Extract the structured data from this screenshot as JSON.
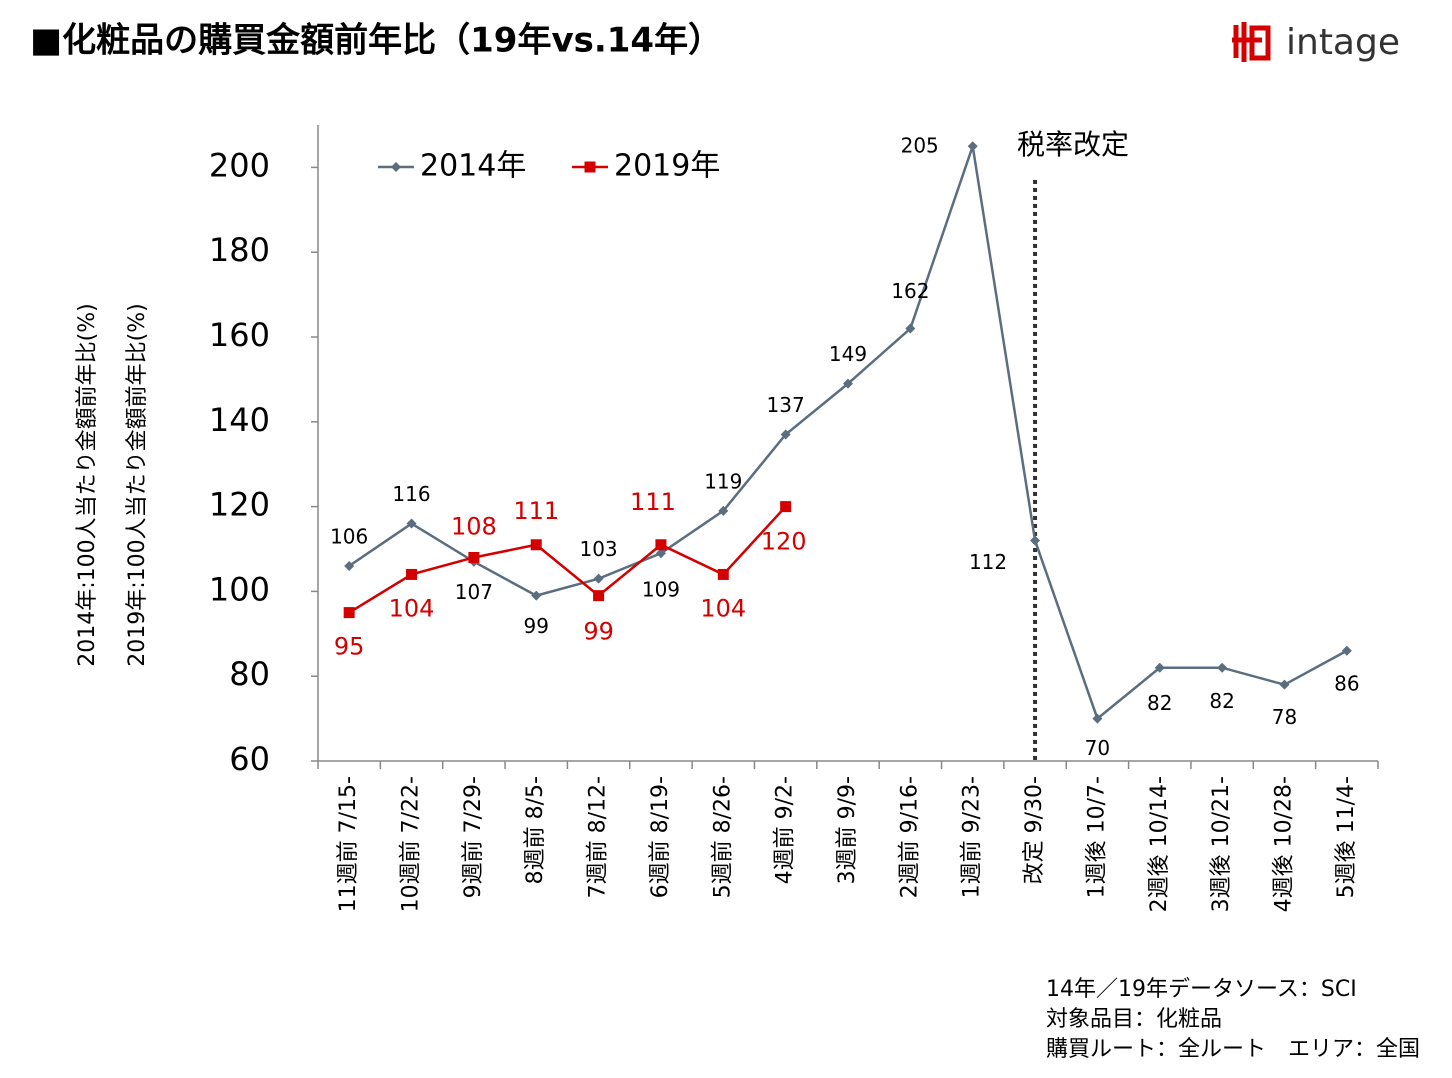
{
  "title": "■化粧品の購買金額前年比（19年vs.14年）",
  "logo": "intage",
  "source_notes": [
    "14年／19年データソース：SCI",
    "対象品目：化粧品",
    "購買ルート：全ルート　エリア：全国"
  ],
  "chart_data": {
    "type": "line",
    "ylabel": [
      "2014年:100人当たり金額前年比(%)",
      "2019年:100人当たり金額前年比(%)"
    ],
    "annotation": "税率改定",
    "categories": [
      "11週前 7/15-",
      "10週前 7/22-",
      "9週前 7/29-",
      "8週前 8/5-",
      "7週前 8/12-",
      "6週前 8/19-",
      "5週前 8/26-",
      "4週前 9/2-",
      "3週前 9/9-",
      "2週前 9/16-",
      "1週前 9/23-",
      "改定 9/30-",
      "1週後 10/7-",
      "2週後 10/14-",
      "3週後 10/21-",
      "4週後 10/28-",
      "5週後 11/4-"
    ],
    "series": [
      {
        "name": "2014年",
        "color": "#5b6e80",
        "marker": "diamond",
        "values": [
          106,
          116,
          107,
          99,
          103,
          109,
          119,
          137,
          149,
          162,
          205,
          112,
          70,
          82,
          82,
          78,
          86
        ]
      },
      {
        "name": "2019年",
        "color": "#d40000",
        "marker": "square",
        "values": [
          95,
          104,
          108,
          111,
          99,
          111,
          104,
          120,
          null,
          null,
          null,
          null,
          null,
          null,
          null,
          null,
          null
        ]
      }
    ],
    "ylim": [
      60,
      210
    ],
    "yticks": [
      60,
      80,
      100,
      120,
      140,
      160,
      180,
      200
    ],
    "grid": false,
    "legend": "top-left"
  }
}
